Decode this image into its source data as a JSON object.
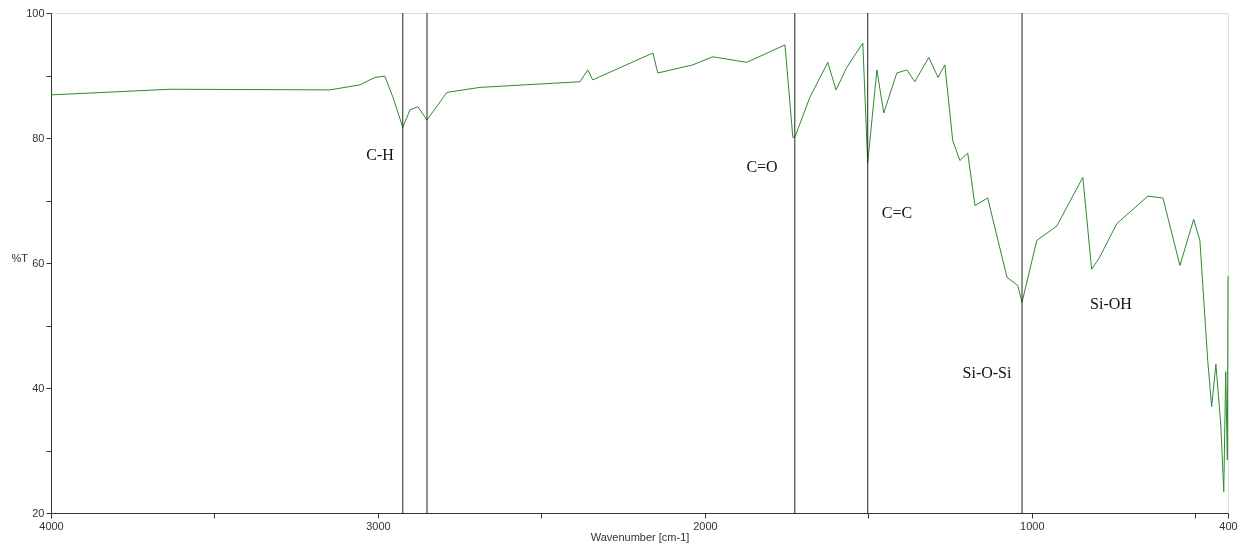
{
  "chart_data": {
    "type": "line",
    "xlabel": "Wavenumber [cm-1]",
    "ylabel": "%T",
    "xlim": [
      4000,
      400
    ],
    "ylim": [
      20,
      100
    ],
    "xticks": [
      4000,
      {
        "value": 3500,
        "label": null
      },
      3000,
      {
        "value": 2500,
        "label": null
      },
      2000,
      {
        "value": 1500,
        "label": null
      },
      1000,
      {
        "value": 500,
        "label": null
      },
      400
    ],
    "yticks": [
      20,
      {
        "value": 30,
        "label": null
      },
      40,
      {
        "value": 50,
        "label": null
      },
      60,
      {
        "value": 70,
        "label": null
      },
      80,
      {
        "value": 90,
        "label": null
      },
      100
    ],
    "grid": false,
    "marker": "none",
    "line_style": "solid",
    "series": [
      {
        "color": "#2e8b2e",
        "x": [
          4000,
          3636,
          3147,
          3055,
          3009,
          2979,
          2954,
          2924,
          2902,
          2878,
          2850,
          2789,
          2688,
          2382,
          2358,
          2343,
          2159,
          2144,
          2037,
          1976,
          1872,
          1755,
          1731,
          1725,
          1679,
          1624,
          1599,
          1566,
          1517,
          1502,
          1474,
          1453,
          1413,
          1382,
          1358,
          1315,
          1287,
          1266,
          1242,
          1220,
          1196,
          1174,
          1135,
          1076,
          1043,
          1030,
          985,
          924,
          844,
          817,
          795,
          740,
          645,
          599,
          547,
          505,
          486,
          462,
          450,
          437,
          422,
          413,
          407,
          402,
          400
        ],
        "values": [
          86.9,
          87.8,
          87.7,
          88.5,
          89.7,
          89.9,
          86.5,
          81.7,
          84.5,
          85,
          82.9,
          87.3,
          88.1,
          89,
          90.9,
          89.3,
          93.6,
          90.4,
          91.7,
          93,
          92.1,
          94.9,
          80.1,
          80.1,
          86.5,
          92.1,
          87.7,
          91.3,
          95.2,
          76,
          90.9,
          84,
          90.4,
          90.9,
          89,
          92.9,
          89.7,
          91.7,
          79.6,
          76.4,
          77.6,
          69.2,
          70.4,
          57.7,
          56.4,
          53.7,
          63.6,
          65.9,
          73.7,
          59,
          60.7,
          66.3,
          70.7,
          70.4,
          59.6,
          67,
          63.6,
          44.4,
          37,
          43.8,
          34.1,
          23.4,
          42.6,
          28.5,
          57.9
        ]
      }
    ],
    "ref_lines": [
      {
        "axis": "x",
        "value": 2924,
        "color": "#222222"
      },
      {
        "axis": "x",
        "value": 2850,
        "color": "#222222"
      },
      {
        "axis": "x",
        "value": 1725,
        "color": "#222222"
      },
      {
        "axis": "x",
        "value": 1502,
        "color": "#222222"
      },
      {
        "axis": "x",
        "value": 1030,
        "color": "#222222"
      }
    ],
    "annotations": [
      "C-H",
      "C=O",
      "C=C",
      "Si-O-Si",
      "Si-OH"
    ]
  }
}
